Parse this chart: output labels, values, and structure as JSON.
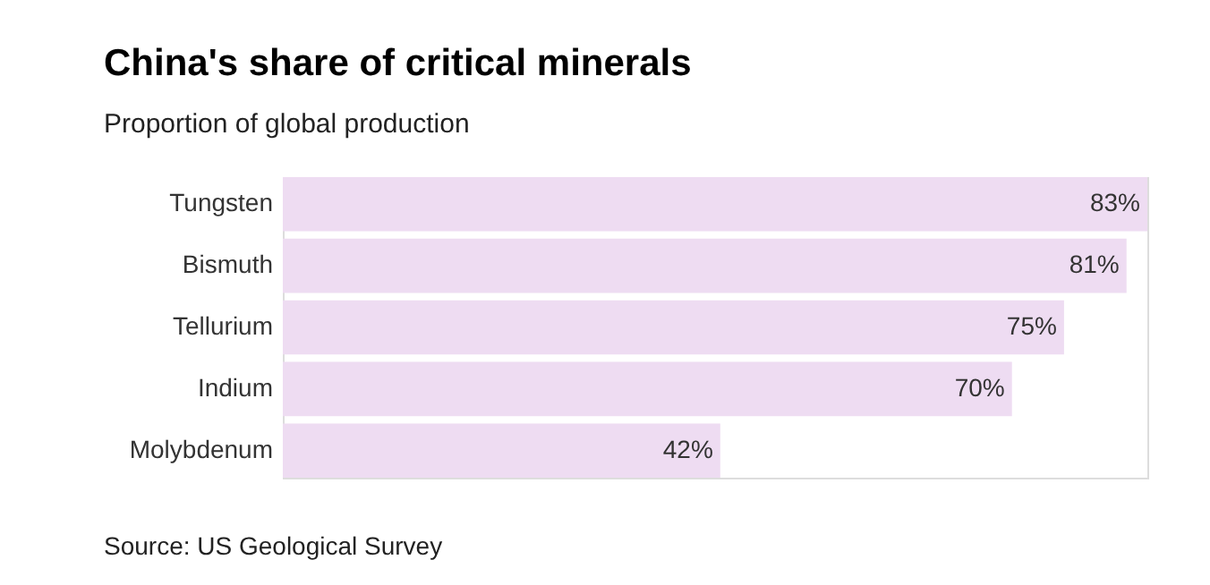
{
  "chart_data": {
    "type": "bar",
    "orientation": "horizontal",
    "title": "China's share of critical minerals",
    "subtitle": "Proportion of global production",
    "categories": [
      "Tungsten",
      "Bismuth",
      "Tellurium",
      "Indium",
      "Molybdenum"
    ],
    "values": [
      83,
      81,
      75,
      70,
      42
    ],
    "color": "#eedcf2",
    "value_labels": [
      "83%",
      "81%",
      "75%",
      "70%",
      "42%"
    ],
    "annotations": [
      "Source: US Geological Survey"
    ]
  }
}
